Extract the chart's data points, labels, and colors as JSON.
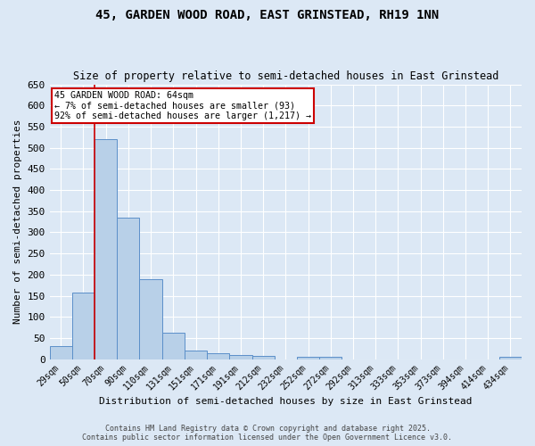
{
  "title": "45, GARDEN WOOD ROAD, EAST GRINSTEAD, RH19 1NN",
  "subtitle": "Size of property relative to semi-detached houses in East Grinstead",
  "xlabel": "Distribution of semi-detached houses by size in East Grinstead",
  "ylabel": "Number of semi-detached properties",
  "categories": [
    "29sqm",
    "50sqm",
    "70sqm",
    "90sqm",
    "110sqm",
    "131sqm",
    "151sqm",
    "171sqm",
    "191sqm",
    "212sqm",
    "232sqm",
    "252sqm",
    "272sqm",
    "292sqm",
    "313sqm",
    "333sqm",
    "353sqm",
    "373sqm",
    "394sqm",
    "414sqm",
    "434sqm"
  ],
  "values": [
    30,
    158,
    520,
    335,
    190,
    63,
    20,
    14,
    10,
    7,
    0,
    5,
    5,
    0,
    0,
    0,
    0,
    0,
    0,
    0,
    5
  ],
  "bar_color": "#b8d0e8",
  "bar_edge_color": "#5b8fc9",
  "redline_x": 1.5,
  "annotation_title": "45 GARDEN WOOD ROAD: 64sqm",
  "annotation_line1": "← 7% of semi-detached houses are smaller (93)",
  "annotation_line2": "92% of semi-detached houses are larger (1,217) →",
  "annotation_box_color": "#ffffff",
  "annotation_box_edge": "#cc0000",
  "redline_color": "#cc0000",
  "ylim": [
    0,
    650
  ],
  "bg_color": "#dce8f5",
  "footer1": "Contains HM Land Registry data © Crown copyright and database right 2025.",
  "footer2": "Contains public sector information licensed under the Open Government Licence v3.0."
}
